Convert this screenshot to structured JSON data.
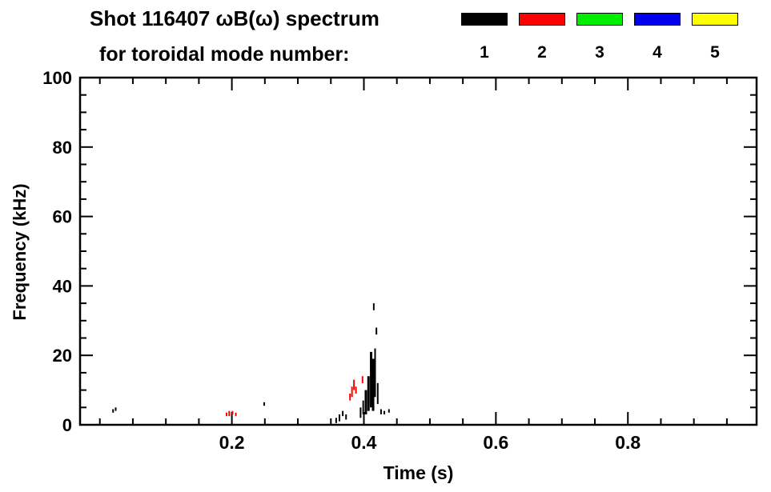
{
  "legend": {
    "items": [
      {
        "label": "1",
        "color": "#000000"
      },
      {
        "label": "2",
        "color": "#ff0000"
      },
      {
        "label": "3",
        "color": "#00ee00"
      },
      {
        "label": "4",
        "color": "#0000ee"
      },
      {
        "label": "5",
        "color": "#ffff00"
      }
    ]
  },
  "chart_data": {
    "type": "scatter",
    "title_line1": "Shot 116407 ωB(ω) spectrum",
    "title_line2": "for toroidal mode number:",
    "xlabel": "Time (s)",
    "ylabel": "Frequency (kHz)",
    "xlim": [
      -0.03,
      0.995
    ],
    "ylim": [
      0,
      100
    ],
    "x_major_ticks": [
      0.2,
      0.4,
      0.6,
      0.8
    ],
    "x_major_labels": [
      "0.2",
      "0.4",
      "0.6",
      "0.8"
    ],
    "x_minor_step": 0.05,
    "y_major_ticks": [
      0,
      20,
      40,
      60,
      80,
      100
    ],
    "y_major_labels": [
      "0",
      "20",
      "40",
      "60",
      "80",
      "100"
    ],
    "y_minor_step": 5,
    "grid": false,
    "legend_position": "top-right",
    "series": [
      {
        "name": "1",
        "color": "#000000",
        "marks": [
          {
            "t": 0.02,
            "f": [
              3.5,
              4.5
            ],
            "w": 2
          },
          {
            "t": 0.024,
            "f": [
              4.0,
              5.0
            ],
            "w": 2
          },
          {
            "t": 0.249,
            "f": [
              5.5,
              6.5
            ],
            "w": 2
          },
          {
            "t": 0.358,
            "f": [
              0.5,
              2.0
            ],
            "w": 2
          },
          {
            "t": 0.363,
            "f": [
              1.0,
              3.0
            ],
            "w": 2
          },
          {
            "t": 0.368,
            "f": [
              2.5,
              4.0
            ],
            "w": 2
          },
          {
            "t": 0.373,
            "f": [
              1.5,
              3.0
            ],
            "w": 2
          },
          {
            "t": 0.395,
            "f": [
              2.0,
              5.0
            ],
            "w": 2
          },
          {
            "t": 0.399,
            "f": [
              3.0,
              7.0
            ],
            "w": 2
          },
          {
            "t": 0.403,
            "f": [
              3.0,
              10.0
            ],
            "w": 3
          },
          {
            "t": 0.407,
            "f": [
              4.0,
              14.0
            ],
            "w": 3
          },
          {
            "t": 0.411,
            "f": [
              5.0,
              21.0
            ],
            "w": 3
          },
          {
            "t": 0.414,
            "f": [
              4.0,
              19.0
            ],
            "w": 3
          },
          {
            "t": 0.417,
            "f": [
              8.0,
              22.0
            ],
            "w": 2
          },
          {
            "t": 0.415,
            "f": [
              33.0,
              35.0
            ],
            "w": 2
          },
          {
            "t": 0.419,
            "f": [
              26.0,
              28.0
            ],
            "w": 2
          },
          {
            "t": 0.421,
            "f": [
              6.0,
              12.0
            ],
            "w": 2
          },
          {
            "t": 0.426,
            "f": [
              3.0,
              4.5
            ],
            "w": 2
          },
          {
            "t": 0.431,
            "f": [
              3.0,
              4.0
            ],
            "w": 2
          },
          {
            "t": 0.438,
            "f": [
              3.5,
              4.5
            ],
            "w": 2
          }
        ]
      },
      {
        "name": "2",
        "color": "#ff0000",
        "marks": [
          {
            "t": 0.192,
            "f": [
              2.5,
              3.5
            ],
            "w": 2
          },
          {
            "t": 0.196,
            "f": [
              2.5,
              4.0
            ],
            "w": 2
          },
          {
            "t": 0.201,
            "f": [
              3.0,
              4.0
            ],
            "w": 2
          },
          {
            "t": 0.206,
            "f": [
              2.5,
              3.5
            ],
            "w": 2
          },
          {
            "t": 0.379,
            "f": [
              7.0,
              9.0
            ],
            "w": 2
          },
          {
            "t": 0.382,
            "f": [
              8.0,
              11.0
            ],
            "w": 2
          },
          {
            "t": 0.385,
            "f": [
              10.0,
              13.0
            ],
            "w": 2
          },
          {
            "t": 0.388,
            "f": [
              9.0,
              11.0
            ],
            "w": 2
          },
          {
            "t": 0.398,
            "f": [
              12.0,
              14.0
            ],
            "w": 2
          }
        ]
      },
      {
        "name": "3",
        "color": "#00ee00",
        "marks": []
      },
      {
        "name": "4",
        "color": "#0000ee",
        "marks": []
      },
      {
        "name": "5",
        "color": "#ffff00",
        "marks": []
      }
    ]
  }
}
